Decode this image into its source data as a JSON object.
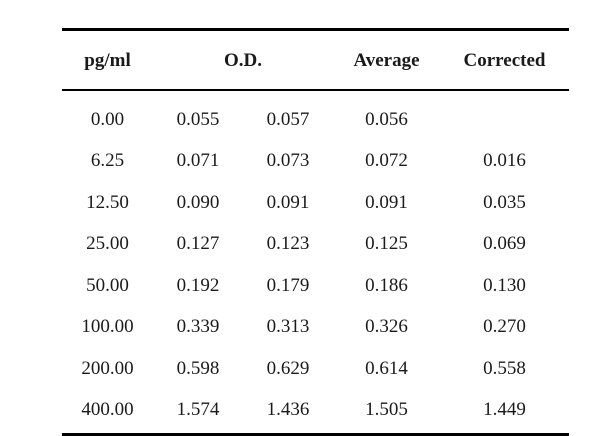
{
  "headers": {
    "concentration": "pg/ml",
    "od": "O.D.",
    "average": "Average",
    "corrected": "Corrected"
  },
  "rows": [
    {
      "conc": "0.00",
      "od1": "0.055",
      "od2": "0.057",
      "avg": "0.056",
      "cor": ""
    },
    {
      "conc": "6.25",
      "od1": "0.071",
      "od2": "0.073",
      "avg": "0.072",
      "cor": "0.016"
    },
    {
      "conc": "12.50",
      "od1": "0.090",
      "od2": "0.091",
      "avg": "0.091",
      "cor": "0.035"
    },
    {
      "conc": "25.00",
      "od1": "0.127",
      "od2": "0.123",
      "avg": "0.125",
      "cor": "0.069"
    },
    {
      "conc": "50.00",
      "od1": "0.192",
      "od2": "0.179",
      "avg": "0.186",
      "cor": "0.130"
    },
    {
      "conc": "100.00",
      "od1": "0.339",
      "od2": "0.313",
      "avg": "0.326",
      "cor": "0.270"
    },
    {
      "conc": "200.00",
      "od1": "0.598",
      "od2": "0.629",
      "avg": "0.614",
      "cor": "0.558"
    },
    {
      "conc": "400.00",
      "od1": "1.574",
      "od2": "1.436",
      "avg": "1.505",
      "cor": "1.449"
    }
  ]
}
